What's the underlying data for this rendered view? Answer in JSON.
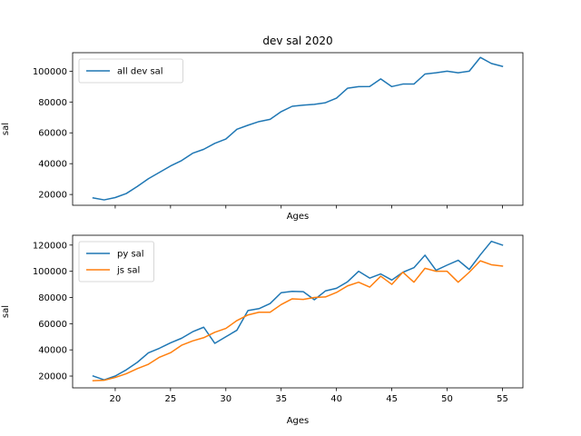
{
  "chart_data": [
    {
      "type": "line",
      "title": "dev sal 2020",
      "xlabel": "Ages",
      "ylabel": "sal",
      "x": [
        18,
        19,
        20,
        21,
        22,
        23,
        24,
        25,
        26,
        27,
        28,
        29,
        30,
        31,
        32,
        33,
        34,
        35,
        36,
        37,
        38,
        39,
        40,
        41,
        42,
        43,
        44,
        45,
        46,
        47,
        48,
        49,
        50,
        51,
        52,
        53,
        54,
        55
      ],
      "xlim": [
        16.15,
        56.85
      ],
      "ylim": [
        13000,
        112000
      ],
      "yticks": [
        20000,
        40000,
        60000,
        80000,
        100000
      ],
      "ytick_labels": [
        "20000",
        "40000",
        "60000",
        "80000",
        "100000"
      ],
      "show_xtick_labels": false,
      "legend": "top-left",
      "grid": false,
      "series": [
        {
          "name": "all dev sal",
          "color": "#1f77b4",
          "values": [
            17784,
            16500,
            18012,
            20628,
            25206,
            30252,
            34368,
            38496,
            42000,
            46752,
            49320,
            53200,
            56000,
            62316,
            64928,
            67317,
            68748,
            73752,
            77232,
            78000,
            78508,
            79536,
            82488,
            88935,
            90000,
            90056,
            95000,
            90000,
            91633,
            91660,
            98150,
            98964,
            100000,
            98988,
            100000,
            108923,
            105000,
            103117
          ]
        }
      ]
    },
    {
      "type": "line",
      "title": "",
      "xlabel": "Ages",
      "ylabel": "sal",
      "x": [
        18,
        19,
        20,
        21,
        22,
        23,
        24,
        25,
        26,
        27,
        28,
        29,
        30,
        31,
        32,
        33,
        34,
        35,
        36,
        37,
        38,
        39,
        40,
        41,
        42,
        43,
        44,
        45,
        46,
        47,
        48,
        49,
        50,
        51,
        52,
        53,
        54,
        55
      ],
      "xlim": [
        16.15,
        56.85
      ],
      "ylim": [
        11000,
        127500
      ],
      "yticks": [
        20000,
        40000,
        60000,
        80000,
        100000,
        120000
      ],
      "ytick_labels": [
        "20000",
        "40000",
        "60000",
        "80000",
        "100000",
        "120000"
      ],
      "xticks": [
        20,
        25,
        30,
        35,
        40,
        45,
        50,
        55
      ],
      "xtick_labels": [
        "20",
        "25",
        "30",
        "35",
        "40",
        "45",
        "50",
        "55"
      ],
      "legend": "top-left",
      "grid": false,
      "series": [
        {
          "name": "py sal",
          "color": "#1f77b4",
          "values": [
            20046,
            17100,
            20000,
            24744,
            30500,
            37732,
            41247,
            45372,
            48876,
            53850,
            57287,
            45000,
            50000,
            55000,
            70000,
            71496,
            75370,
            83640,
            84666,
            84392,
            78254,
            85000,
            87038,
            91991,
            100000,
            94796,
            97962,
            93302,
            99240,
            102736,
            112285,
            100771,
            104708,
            108423,
            101407,
            112542,
            122870,
            120000
          ]
        },
        {
          "name": "js sal",
          "color": "#ff7f0e",
          "values": [
            16446,
            16791,
            18942,
            21780,
            25704,
            29000,
            34372,
            37810,
            43515,
            46823,
            49293,
            53437,
            56373,
            62375,
            66674,
            68745,
            68746,
            74583,
            79000,
            78508,
            79996,
            80403,
            83820,
            88833,
            91660,
            87892,
            96243,
            90000,
            99313,
            91660,
            102264,
            100000,
            100000,
            91660,
            99240,
            108000,
            105000,
            104000
          ]
        }
      ]
    }
  ]
}
